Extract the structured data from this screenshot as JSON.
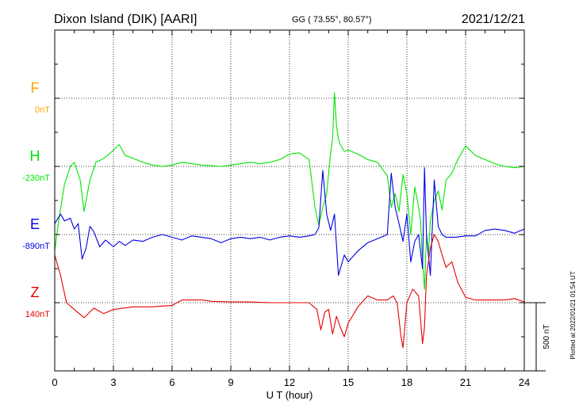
{
  "header": {
    "station": "Dixon Island (DIK)  [AARI]",
    "coords": "GG ( 73.55°,  80.57°)",
    "date": "2021/12/21"
  },
  "footer": {
    "plotted": "Plotted at 2022/01/21 01:54 UT"
  },
  "chart_data": {
    "type": "line",
    "xlabel": "U T (hour)",
    "xlim": [
      0,
      24
    ],
    "x_ticks": [
      0,
      3,
      6,
      9,
      12,
      15,
      18,
      21,
      24
    ],
    "scale_bar": "500 nT",
    "scale_bar_nT": 500,
    "grid": true,
    "series": [
      {
        "name": "F",
        "baseline_label": "0nT",
        "color": "#ffa500",
        "x": [],
        "y": []
      },
      {
        "name": "H",
        "baseline_label": "-230nT",
        "color": "#00e600",
        "x": [
          0,
          0.2,
          0.5,
          0.8,
          1.0,
          1.3,
          1.5,
          1.8,
          2.1,
          2.4,
          2.7,
          3.0,
          3.3,
          3.6,
          4.0,
          4.5,
          5.0,
          5.5,
          6.0,
          6.5,
          7.0,
          7.5,
          8.0,
          8.5,
          9.0,
          9.5,
          10.0,
          10.5,
          11.0,
          11.5,
          12.0,
          12.5,
          13.0,
          13.3,
          13.5,
          13.7,
          13.9,
          14.1,
          14.2,
          14.3,
          14.4,
          14.5,
          14.6,
          14.8,
          15.0,
          15.5,
          16.0,
          16.5,
          17.0,
          17.2,
          17.4,
          17.6,
          17.8,
          18.0,
          18.2,
          18.4,
          18.6,
          18.7,
          18.8,
          18.9,
          19.0,
          19.1,
          19.2,
          19.4,
          19.6,
          19.8,
          20.0,
          20.3,
          20.6,
          21.0,
          21.5,
          22.0,
          22.5,
          23.0,
          23.5,
          24.0
        ],
        "y": [
          -620,
          -400,
          -130,
          0,
          30,
          -100,
          -330,
          -100,
          30,
          50,
          80,
          120,
          160,
          80,
          60,
          30,
          10,
          0,
          10,
          30,
          20,
          10,
          5,
          0,
          10,
          20,
          30,
          20,
          30,
          50,
          90,
          100,
          50,
          -300,
          -430,
          -300,
          -200,
          100,
          200,
          540,
          300,
          200,
          160,
          110,
          120,
          90,
          50,
          30,
          -70,
          -300,
          -200,
          -330,
          -60,
          -200,
          -500,
          -150,
          -300,
          -400,
          -700,
          -900,
          -500,
          -650,
          -400,
          -250,
          -180,
          -320,
          -100,
          -50,
          50,
          150,
          80,
          50,
          20,
          0,
          -10,
          0
        ]
      },
      {
        "name": "E",
        "baseline_label": "-890nT",
        "color": "#0000e6",
        "x": [
          0,
          0.3,
          0.5,
          0.8,
          1.0,
          1.2,
          1.4,
          1.6,
          1.8,
          2.0,
          2.3,
          2.6,
          3.0,
          3.3,
          3.6,
          4.0,
          4.5,
          5.0,
          5.5,
          6.0,
          6.5,
          7.0,
          7.5,
          8.0,
          8.5,
          9.0,
          9.5,
          10.0,
          10.5,
          11.0,
          11.5,
          12.0,
          12.5,
          13.0,
          13.3,
          13.5,
          13.7,
          13.9,
          14.1,
          14.3,
          14.5,
          14.8,
          15.0,
          15.5,
          16.0,
          16.5,
          17.0,
          17.2,
          17.4,
          17.6,
          17.8,
          18.0,
          18.2,
          18.4,
          18.6,
          18.8,
          18.9,
          19.0,
          19.2,
          19.4,
          19.6,
          19.8,
          20.0,
          20.5,
          21.0,
          21.5,
          22.0,
          22.5,
          23.0,
          23.5,
          24.0
        ],
        "y": [
          80,
          150,
          100,
          120,
          40,
          80,
          -180,
          -100,
          60,
          20,
          -90,
          -40,
          -90,
          -50,
          -80,
          -40,
          -50,
          -20,
          0,
          -20,
          -40,
          -10,
          -20,
          -30,
          -60,
          -30,
          -20,
          -30,
          -20,
          -40,
          -20,
          -10,
          -20,
          -10,
          0,
          50,
          470,
          150,
          30,
          150,
          -300,
          -150,
          -200,
          -120,
          -60,
          -30,
          0,
          450,
          200,
          80,
          -50,
          150,
          -200,
          -50,
          0,
          -250,
          490,
          0,
          -300,
          400,
          60,
          0,
          -20,
          -20,
          -10,
          -10,
          30,
          40,
          30,
          10,
          40
        ]
      },
      {
        "name": "Z",
        "baseline_label": "140nT",
        "color": "#e60000",
        "x": [
          0,
          0.3,
          0.6,
          1.0,
          1.5,
          2.0,
          2.5,
          3.0,
          3.5,
          4.0,
          5.0,
          6.0,
          6.5,
          7.0,
          7.5,
          8.0,
          9.0,
          10.0,
          11.0,
          12.0,
          12.5,
          13.0,
          13.4,
          13.6,
          13.8,
          14.0,
          14.2,
          14.4,
          14.6,
          14.8,
          15.0,
          15.5,
          16.0,
          16.5,
          17.0,
          17.3,
          17.5,
          17.7,
          17.8,
          18.0,
          18.3,
          18.6,
          18.8,
          18.9,
          19.0,
          19.2,
          19.4,
          19.6,
          19.8,
          20.0,
          20.3,
          20.6,
          21.0,
          21.5,
          22.0,
          22.5,
          23.0,
          23.5,
          24.0
        ],
        "y": [
          350,
          200,
          0,
          -50,
          -110,
          -40,
          -80,
          -50,
          -40,
          -30,
          -30,
          -20,
          20,
          20,
          20,
          10,
          5,
          5,
          0,
          0,
          0,
          0,
          -50,
          -200,
          -70,
          -50,
          -230,
          -100,
          -180,
          -250,
          -150,
          -30,
          50,
          20,
          20,
          50,
          0,
          -250,
          -330,
          0,
          100,
          50,
          -300,
          -180,
          200,
          400,
          500,
          450,
          350,
          260,
          300,
          150,
          40,
          20,
          20,
          20,
          20,
          30,
          5
        ]
      }
    ]
  }
}
